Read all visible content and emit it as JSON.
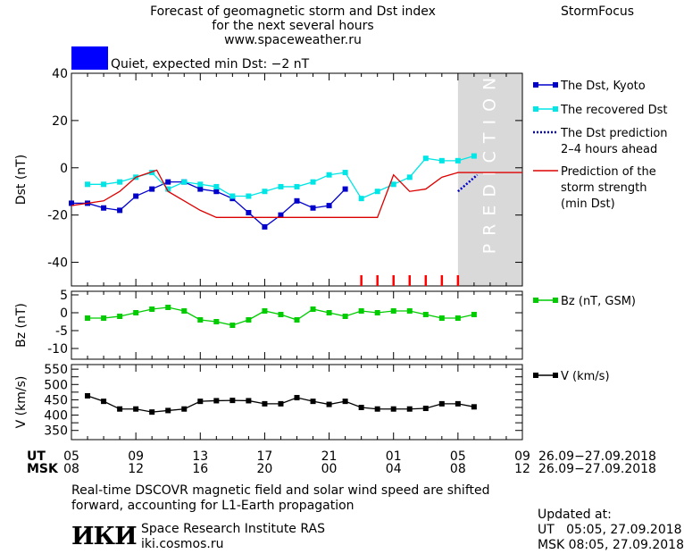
{
  "header": {
    "title_lines": [
      "Forecast of geomagnetic storm and Dst index",
      "for the next several hours",
      "www.spaceweather.ru"
    ],
    "brand": "StormFocus",
    "status_text": "Quiet, expected min Dst: −2 nT",
    "status_color": "#0000ff"
  },
  "prediction_label": "PREDICTION",
  "chart_data": [
    {
      "type": "line",
      "panel": "dst",
      "ylabel": "Dst (nT)",
      "ylim": [
        -50,
        40
      ],
      "yticks": [
        40,
        20,
        0,
        -20,
        -40
      ],
      "xlim": [
        5,
        33
      ],
      "series": [
        {
          "name": "The Dst, Kyoto",
          "color": "#0000cc",
          "marker": "square",
          "x": [
            5,
            6,
            7,
            8,
            9,
            10,
            11,
            12,
            13,
            14,
            15,
            16,
            17,
            18,
            19,
            20,
            21,
            22
          ],
          "values": [
            -15,
            -15,
            -17,
            -18,
            -12,
            -9,
            -6,
            -6,
            -9,
            -10,
            -13,
            -19,
            -25,
            -20,
            -14,
            -17,
            -16,
            -9
          ]
        },
        {
          "name": "The recovered Dst",
          "color": "#00e5e5",
          "marker": "square",
          "x": [
            6,
            7,
            8,
            9,
            10,
            11,
            12,
            13,
            14,
            15,
            16,
            17,
            18,
            19,
            20,
            21,
            22,
            23,
            24,
            25,
            26,
            27,
            28,
            29,
            30
          ],
          "values": [
            -7,
            -7,
            -6,
            -4,
            -2,
            -9,
            -6,
            -7,
            -8,
            -12,
            -12,
            -10,
            -8,
            -8,
            -6,
            -3,
            -2,
            -13,
            -10,
            -7,
            -4,
            4,
            3,
            3,
            5
          ]
        },
        {
          "name": "The Dst prediction 2–4 hours ahead",
          "color": "#0000cc",
          "dash": true,
          "x": [
            29,
            30.2
          ],
          "values": [
            -10,
            -3
          ]
        },
        {
          "name": "Prediction of the storm strength (min Dst)",
          "color": "#dd0000",
          "step": true,
          "x": [
            5,
            7,
            8,
            9,
            10.3,
            11,
            12,
            13,
            14,
            15,
            16,
            24,
            25,
            26,
            27,
            28,
            29,
            33
          ],
          "values": [
            -16,
            -14,
            -10,
            -4,
            -1,
            -10,
            -14,
            -18,
            -21,
            -21,
            -21,
            -21,
            -3,
            -10,
            -9,
            -4,
            -2,
            -2
          ]
        }
      ],
      "markers": {
        "color": "#ff0000",
        "x": [
          23,
          24,
          25,
          26,
          27,
          28,
          29
        ]
      },
      "prediction_zone": [
        29,
        33
      ]
    },
    {
      "type": "line",
      "panel": "bz",
      "ylabel": "Bz (nT)",
      "ylim": [
        -13,
        6
      ],
      "yticks": [
        5,
        0,
        -5,
        -10
      ],
      "xlim": [
        5,
        33
      ],
      "series": [
        {
          "name": "Bz (nT, GSM)",
          "color": "#00cc00",
          "marker": "square",
          "x": [
            6,
            7,
            8,
            9,
            10,
            11,
            12,
            13,
            14,
            15,
            16,
            17,
            18,
            19,
            20,
            21,
            22,
            23,
            24,
            25,
            26,
            27,
            28,
            29,
            30
          ],
          "values": [
            -1.5,
            -1.5,
            -1,
            0,
            1,
            1.5,
            0.5,
            -2,
            -2.5,
            -3.5,
            -2,
            0.5,
            -0.5,
            -2,
            1,
            0,
            -1,
            0.5,
            0,
            0.5,
            0.5,
            -0.5,
            -1.5,
            -1.5,
            -0.5
          ]
        }
      ]
    },
    {
      "type": "line",
      "panel": "v",
      "ylabel": "V (km/s)",
      "ylim": [
        320,
        565
      ],
      "yticks": [
        550,
        500,
        450,
        400,
        350
      ],
      "extra_yticks": [
        525,
        475,
        425,
        375
      ],
      "xlim": [
        5,
        33
      ],
      "series": [
        {
          "name": "V (km/s)",
          "color": "#000000",
          "marker": "square",
          "x": [
            6,
            7,
            8,
            9,
            10,
            11,
            12,
            13,
            14,
            15,
            16,
            17,
            18,
            19,
            20,
            21,
            22,
            23,
            24,
            25,
            26,
            27,
            28,
            29,
            30
          ],
          "values": [
            463,
            445,
            420,
            420,
            410,
            415,
            420,
            445,
            447,
            448,
            447,
            437,
            437,
            457,
            445,
            435,
            445,
            425,
            420,
            420,
            420,
            422,
            437,
            437,
            427
          ]
        }
      ]
    }
  ],
  "axis": {
    "ut_label": "UT",
    "msk_label": "MSK",
    "ut_ticks": [
      "05",
      "09",
      "13",
      "17",
      "21",
      "01",
      "05",
      "09"
    ],
    "msk_ticks": [
      "08",
      "12",
      "16",
      "20",
      "00",
      "04",
      "08",
      "12"
    ],
    "date_range": "26.09−27.09.2018"
  },
  "footer": {
    "note_lines": [
      "Real-time DSCOVR magnetic field and solar wind speed are shifted",
      "forward, accounting for L1-Earth propagation"
    ],
    "logo_text": "ИКИ",
    "institute": "Space Research Institute RAS",
    "website": "iki.cosmos.ru",
    "updated_label": "Updated at:",
    "updated_ut": "UT   05:05, 27.09.2018",
    "updated_msk": "MSK 08:05, 27.09.2018"
  }
}
